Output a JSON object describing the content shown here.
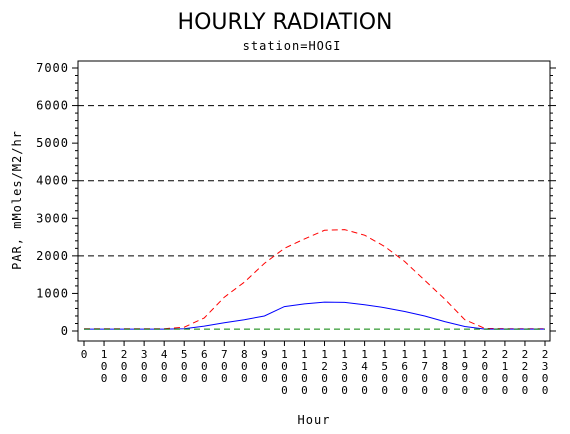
{
  "chart_data": {
    "type": "line",
    "title": "HOURLY RADIATION",
    "subtitle": "station=HOGI",
    "xlabel": "Hour",
    "ylabel": "PAR, mMoles/M2/hr",
    "xlim": [
      0,
      2300
    ],
    "ylim": [
      0,
      7000
    ],
    "x_ticks": [
      0,
      100,
      200,
      300,
      400,
      500,
      600,
      700,
      800,
      900,
      1000,
      1100,
      1200,
      1300,
      1400,
      1500,
      1600,
      1700,
      1800,
      1900,
      2000,
      2100,
      2200,
      2300
    ],
    "x_tick_labels": [
      "0",
      "100",
      "200",
      "300",
      "400",
      "500",
      "600",
      "700",
      "800",
      "900",
      "1000",
      "1100",
      "1200",
      "1300",
      "1400",
      "1500",
      "1600",
      "1700",
      "1800",
      "1900",
      "2000",
      "2100",
      "2200",
      "2300"
    ],
    "y_ticks": [
      0,
      1000,
      2000,
      3000,
      4000,
      5000,
      6000,
      7000
    ],
    "y_tick_labels": [
      "0",
      "1000",
      "2000",
      "3000",
      "4000",
      "5000",
      "6000",
      "7000"
    ],
    "reference_lines": [
      2000,
      4000,
      6000
    ],
    "x": [
      0,
      100,
      200,
      300,
      400,
      500,
      600,
      700,
      800,
      900,
      1000,
      1100,
      1200,
      1300,
      1400,
      1500,
      1600,
      1700,
      1800,
      1900,
      2000,
      2100,
      2200,
      2300
    ],
    "series": [
      {
        "color": "#ff0000",
        "dash": "dashed",
        "values": [
          60,
          60,
          60,
          60,
          60,
          100,
          350,
          900,
          1300,
          1800,
          2200,
          2450,
          2680,
          2700,
          2550,
          2250,
          1850,
          1350,
          850,
          300,
          70,
          60,
          60,
          60
        ]
      },
      {
        "color": "#0000ff",
        "dash": "solid",
        "values": [
          50,
          50,
          50,
          50,
          50,
          60,
          130,
          220,
          300,
          400,
          650,
          720,
          770,
          760,
          700,
          620,
          520,
          400,
          250,
          120,
          50,
          50,
          50,
          50
        ]
      },
      {
        "color": "#008000",
        "dash": "dashed",
        "values": [
          50,
          50,
          50,
          50,
          50,
          50,
          50,
          50,
          50,
          50,
          50,
          50,
          50,
          50,
          50,
          50,
          50,
          50,
          50,
          50,
          50,
          50,
          50,
          50
        ]
      }
    ]
  },
  "colors": {
    "reference_line": "#000000",
    "axis": "#000000",
    "background": "#ffffff"
  }
}
